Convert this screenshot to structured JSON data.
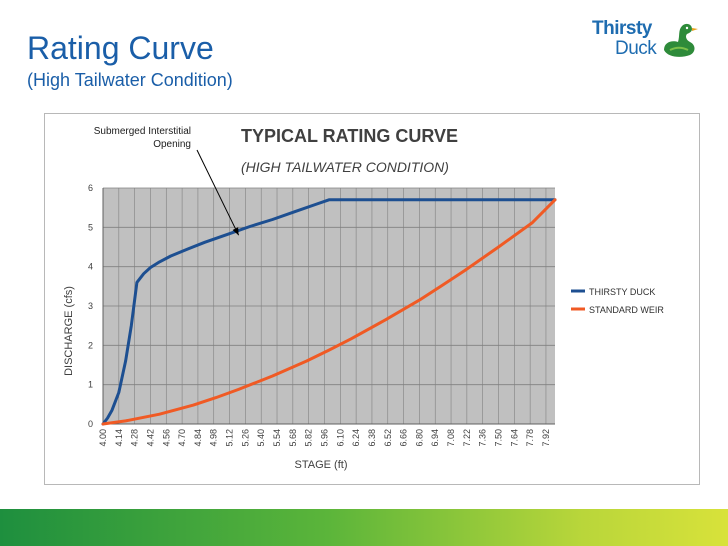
{
  "slide": {
    "title": "Rating Curve",
    "subtitle": "(High Tailwater Condition)"
  },
  "logo": {
    "line1": "Thirsty",
    "line2": "Duck",
    "trademark": "™"
  },
  "colors": {
    "title": "#1a5ea8",
    "thirsty_duck_series": "#1d4f91",
    "standard_weir_series": "#f05a24",
    "plot_background": "#c0c0c0",
    "bottom_bar_start": "#1e8f3e",
    "bottom_bar_end": "#d8e23a"
  },
  "chart_data": {
    "type": "line",
    "title": "TYPICAL RATING CURVE",
    "subtitle": "(HIGH TAILWATER CONDITION)",
    "xlabel": "STAGE (ft)",
    "ylabel": "DISCHARGE (cfs)",
    "xlim": [
      4.0,
      8.0
    ],
    "ylim": [
      0,
      6
    ],
    "yticks": [
      0,
      1,
      2,
      3,
      4,
      5,
      6
    ],
    "xticks": [
      "4.00",
      "4.14",
      "4.28",
      "4.42",
      "4.56",
      "4.70",
      "4.84",
      "4.98",
      "5.12",
      "5.26",
      "5.40",
      "5.54",
      "5.68",
      "5.82",
      "5.96",
      "6.10",
      "6.24",
      "6.38",
      "6.52",
      "6.66",
      "6.80",
      "6.94",
      "7.08",
      "7.22",
      "7.36",
      "7.50",
      "7.64",
      "7.78",
      "7.92"
    ],
    "grid": true,
    "legend_position": "right",
    "annotation": {
      "text_lines": [
        "Submerged Interstitial",
        "Opening"
      ],
      "points_to": [
        5.2,
        4.8
      ]
    },
    "series": [
      {
        "name": "THIRSTY DUCK",
        "color": "#1d4f91",
        "x": [
          4.0,
          4.04,
          4.08,
          4.14,
          4.2,
          4.25,
          4.3,
          4.36,
          4.42,
          4.5,
          4.6,
          4.75,
          4.9,
          5.1,
          5.3,
          5.5,
          5.7,
          5.88,
          6.0,
          6.5,
          7.0,
          7.5,
          8.0
        ],
        "y": [
          0,
          0.15,
          0.35,
          0.8,
          1.6,
          2.5,
          3.6,
          3.82,
          3.98,
          4.12,
          4.27,
          4.45,
          4.62,
          4.82,
          5.02,
          5.2,
          5.4,
          5.58,
          5.7,
          5.7,
          5.7,
          5.7,
          5.7
        ]
      },
      {
        "name": "STANDARD WEIR",
        "color": "#f05a24",
        "x": [
          4.0,
          4.2,
          4.5,
          4.8,
          5.0,
          5.2,
          5.5,
          5.8,
          6.0,
          6.2,
          6.5,
          6.8,
          7.0,
          7.2,
          7.5,
          7.8,
          8.0
        ],
        "y": [
          0,
          0.08,
          0.25,
          0.48,
          0.67,
          0.88,
          1.22,
          1.6,
          1.88,
          2.17,
          2.65,
          3.15,
          3.52,
          3.9,
          4.5,
          5.12,
          5.7
        ]
      }
    ]
  }
}
